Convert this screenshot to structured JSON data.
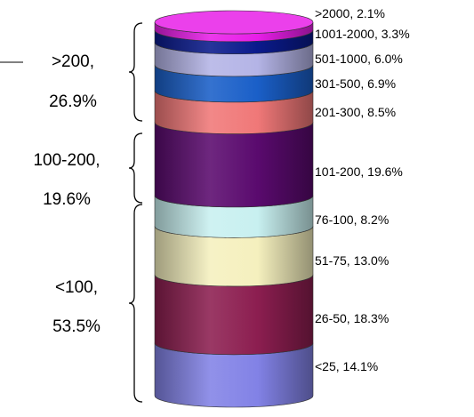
{
  "chart_data": {
    "type": "stacked-cylinder",
    "title": "",
    "segments": [
      {
        "label": ">2000, 2.1%",
        "range": ">2000",
        "value": 2.1,
        "color": "#e81ee8"
      },
      {
        "label": "1001-2000, 3.3%",
        "range": "1001-2000",
        "value": 3.3,
        "color": "#0a1a8c"
      },
      {
        "label": "501-1000, 6.0%",
        "range": "501-1000",
        "value": 6.0,
        "color": "#b4b4e6"
      },
      {
        "label": "301-500, 6.9%",
        "range": "301-500",
        "value": 6.9,
        "color": "#1a5fc8"
      },
      {
        "label": "201-300, 8.5%",
        "range": "201-300",
        "value": 8.5,
        "color": "#f07878"
      },
      {
        "label": "101-200, 19.6%",
        "range": "101-200",
        "value": 19.6,
        "color": "#5a0a6e"
      },
      {
        "label": "76-100, 8.2%",
        "range": "76-100",
        "value": 8.2,
        "color": "#c8f0f0"
      },
      {
        "label": "51-75, 13.0%",
        "range": "51-75",
        "value": 13.0,
        "color": "#f5f0be"
      },
      {
        "label": "26-50, 18.3%",
        "range": "26-50",
        "value": 18.3,
        "color": "#8c1e50"
      },
      {
        "label": "<25, 14.1%",
        "range": "<25",
        "value": 14.1,
        "color": "#8282e6"
      }
    ],
    "groups": [
      {
        "name": ">200",
        "percent": "26.9%",
        "line1": ">200,",
        "line2": "26.9%",
        "from": 0,
        "to": 4
      },
      {
        "name": "100-200",
        "percent": "19.6%",
        "line1": "100-200,",
        "line2": "19.6%",
        "from": 5,
        "to": 5
      },
      {
        "name": "<100",
        "percent": "53.5%",
        "line1": "<100,",
        "line2": "53.5%",
        "from": 6,
        "to": 9
      }
    ]
  }
}
